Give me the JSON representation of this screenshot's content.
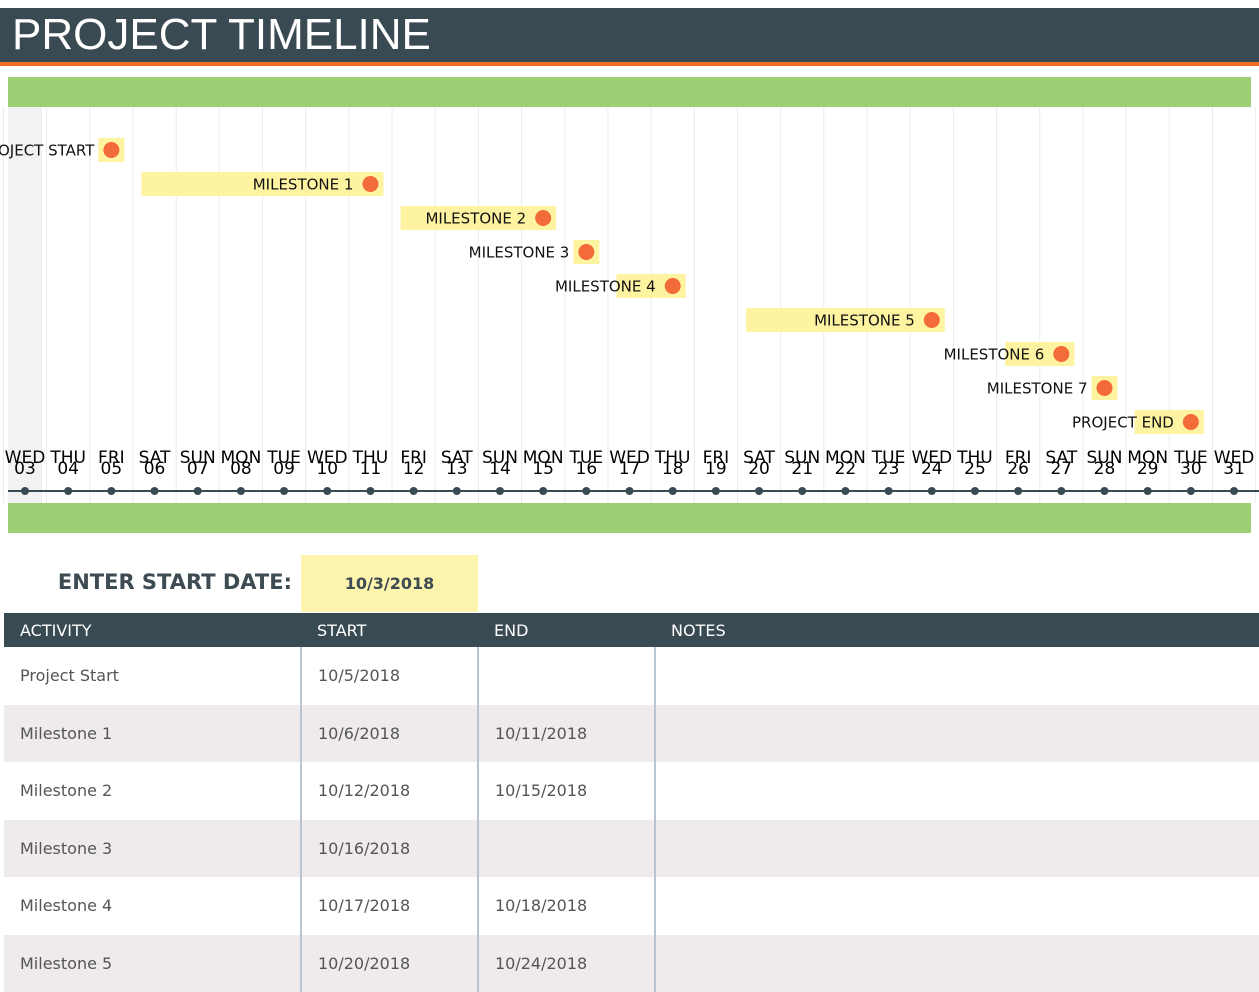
{
  "header": {
    "title": "PROJECT TIMELINE"
  },
  "timeline": {
    "days": [
      {
        "weekday": "WED",
        "day": "03"
      },
      {
        "weekday": "THU",
        "day": "04"
      },
      {
        "weekday": "FRI",
        "day": "05"
      },
      {
        "weekday": "SAT",
        "day": "06"
      },
      {
        "weekday": "SUN",
        "day": "07"
      },
      {
        "weekday": "MON",
        "day": "08"
      },
      {
        "weekday": "TUE",
        "day": "09"
      },
      {
        "weekday": "WED",
        "day": "10"
      },
      {
        "weekday": "THU",
        "day": "11"
      },
      {
        "weekday": "FRI",
        "day": "12"
      },
      {
        "weekday": "SAT",
        "day": "13"
      },
      {
        "weekday": "SUN",
        "day": "14"
      },
      {
        "weekday": "MON",
        "day": "15"
      },
      {
        "weekday": "TUE",
        "day": "16"
      },
      {
        "weekday": "WED",
        "day": "17"
      },
      {
        "weekday": "THU",
        "day": "18"
      },
      {
        "weekday": "FRI",
        "day": "19"
      },
      {
        "weekday": "SAT",
        "day": "20"
      },
      {
        "weekday": "SUN",
        "day": "21"
      },
      {
        "weekday": "MON",
        "day": "22"
      },
      {
        "weekday": "TUE",
        "day": "23"
      },
      {
        "weekday": "WED",
        "day": "24"
      },
      {
        "weekday": "THU",
        "day": "25"
      },
      {
        "weekday": "FRI",
        "day": "26"
      },
      {
        "weekday": "SAT",
        "day": "27"
      },
      {
        "weekday": "SUN",
        "day": "28"
      },
      {
        "weekday": "MON",
        "day": "29"
      },
      {
        "weekday": "TUE",
        "day": "30"
      },
      {
        "weekday": "WED",
        "day": "31"
      }
    ],
    "milestones": [
      "PROJECT START",
      "MILESTONE 1",
      "MILESTONE 2",
      "MILESTONE 3",
      "MILESTONE 4",
      "MILESTONE 5",
      "MILESTONE 6",
      "MILESTONE 7",
      "PROJECT END"
    ]
  },
  "start_date": {
    "label": "ENTER START DATE:",
    "value": "10/3/2018"
  },
  "table": {
    "columns": [
      "ACTIVITY",
      "START",
      "END",
      "NOTES"
    ],
    "rows": [
      [
        "Project Start",
        "10/5/2018",
        null
      ],
      [
        "Milestone 1",
        "10/6/2018",
        "10/11/2018"
      ],
      [
        "Milestone 2",
        "10/12/2018",
        "10/15/2018"
      ],
      [
        "Milestone 3",
        "10/16/2018",
        null
      ],
      [
        "Milestone 4",
        "10/17/2018",
        "10/18/2018"
      ],
      [
        "Milestone 5",
        "10/20/2018",
        "10/24/2018"
      ]
    ]
  }
}
